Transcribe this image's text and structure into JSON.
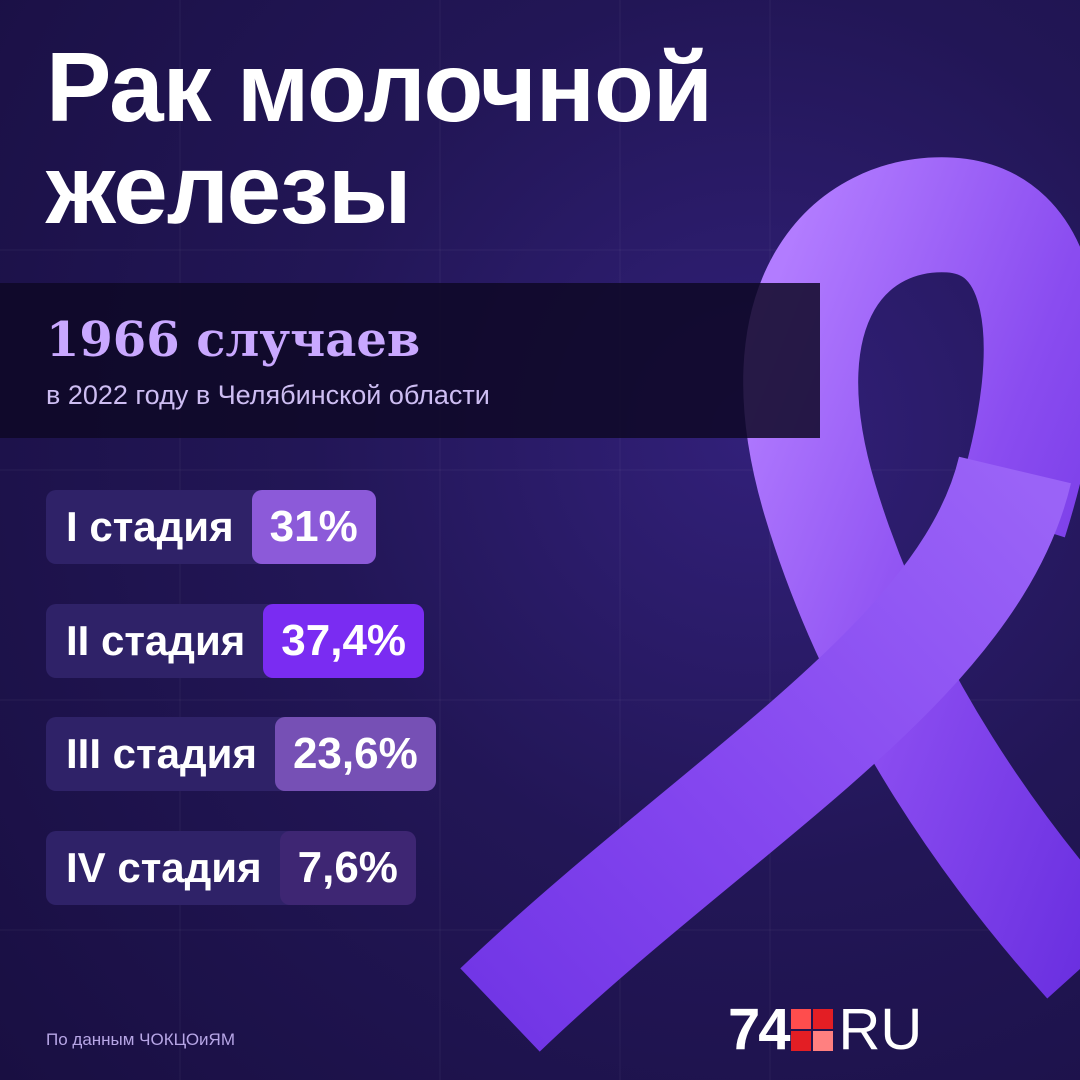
{
  "header": {
    "title_line1": "Рак молочной",
    "title_line2": "железы"
  },
  "summary": {
    "headline": "1966 случаев",
    "subline": "в 2022 году в Челябинской области"
  },
  "stages": [
    {
      "label": "I стадия",
      "value": "31%"
    },
    {
      "label": "II стадия",
      "value": "37,4%"
    },
    {
      "label": "III стадия",
      "value": "23,6%"
    },
    {
      "label": "IV стадия",
      "value": "7,6%"
    }
  ],
  "footer": {
    "source": "По данным ЧОКЦОиЯМ",
    "logo_number": "74",
    "logo_text": "RU"
  }
}
